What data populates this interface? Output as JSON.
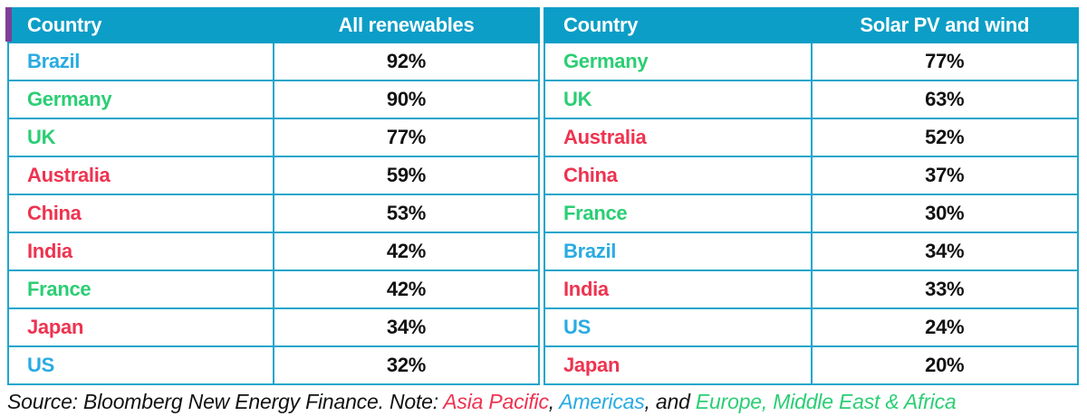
{
  "chart_data": [
    {
      "type": "table",
      "columns": [
        "Country",
        "All renewables"
      ],
      "rows": [
        {
          "country": "Brazil",
          "value": "92%",
          "region": "americas"
        },
        {
          "country": "Germany",
          "value": "90%",
          "region": "emea"
        },
        {
          "country": "UK",
          "value": "77%",
          "region": "emea"
        },
        {
          "country": "Australia",
          "value": "59%",
          "region": "asia_pacific"
        },
        {
          "country": "China",
          "value": "53%",
          "region": "asia_pacific"
        },
        {
          "country": "India",
          "value": "42%",
          "region": "asia_pacific"
        },
        {
          "country": "France",
          "value": "42%",
          "region": "emea"
        },
        {
          "country": "Japan",
          "value": "34%",
          "region": "asia_pacific"
        },
        {
          "country": "US",
          "value": "32%",
          "region": "americas"
        }
      ]
    },
    {
      "type": "table",
      "columns": [
        "Country",
        "Solar PV and wind"
      ],
      "rows": [
        {
          "country": "Germany",
          "value": "77%",
          "region": "emea"
        },
        {
          "country": "UK",
          "value": "63%",
          "region": "emea"
        },
        {
          "country": "Australia",
          "value": "52%",
          "region": "asia_pacific"
        },
        {
          "country": "China",
          "value": "37%",
          "region": "asia_pacific"
        },
        {
          "country": "France",
          "value": "30%",
          "region": "emea"
        },
        {
          "country": "Brazil",
          "value": "34%",
          "region": "americas"
        },
        {
          "country": "India",
          "value": "33%",
          "region": "asia_pacific"
        },
        {
          "country": "US",
          "value": "24%",
          "region": "americas"
        },
        {
          "country": "Japan",
          "value": "20%",
          "region": "asia_pacific"
        }
      ]
    }
  ],
  "footer": {
    "segments": [
      {
        "text": "Source: Bloomberg New Energy Finance. Note: ",
        "region": "none"
      },
      {
        "text": "Asia Pacific",
        "region": "asia_pacific"
      },
      {
        "text": ", ",
        "region": "none"
      },
      {
        "text": "Americas",
        "region": "americas"
      },
      {
        "text": ", and ",
        "region": "none"
      },
      {
        "text": "Europe, Middle East & Africa",
        "region": "emea"
      }
    ]
  },
  "colors": {
    "header_bg": "#0C9EC7",
    "header_text": "#FFFFFF",
    "border": "#21A5CC",
    "accent_purple": "#7C3F98",
    "americas": "#29ABE2",
    "asia_pacific": "#EE3350",
    "emea": "#2BCE74",
    "text": "#121212"
  }
}
